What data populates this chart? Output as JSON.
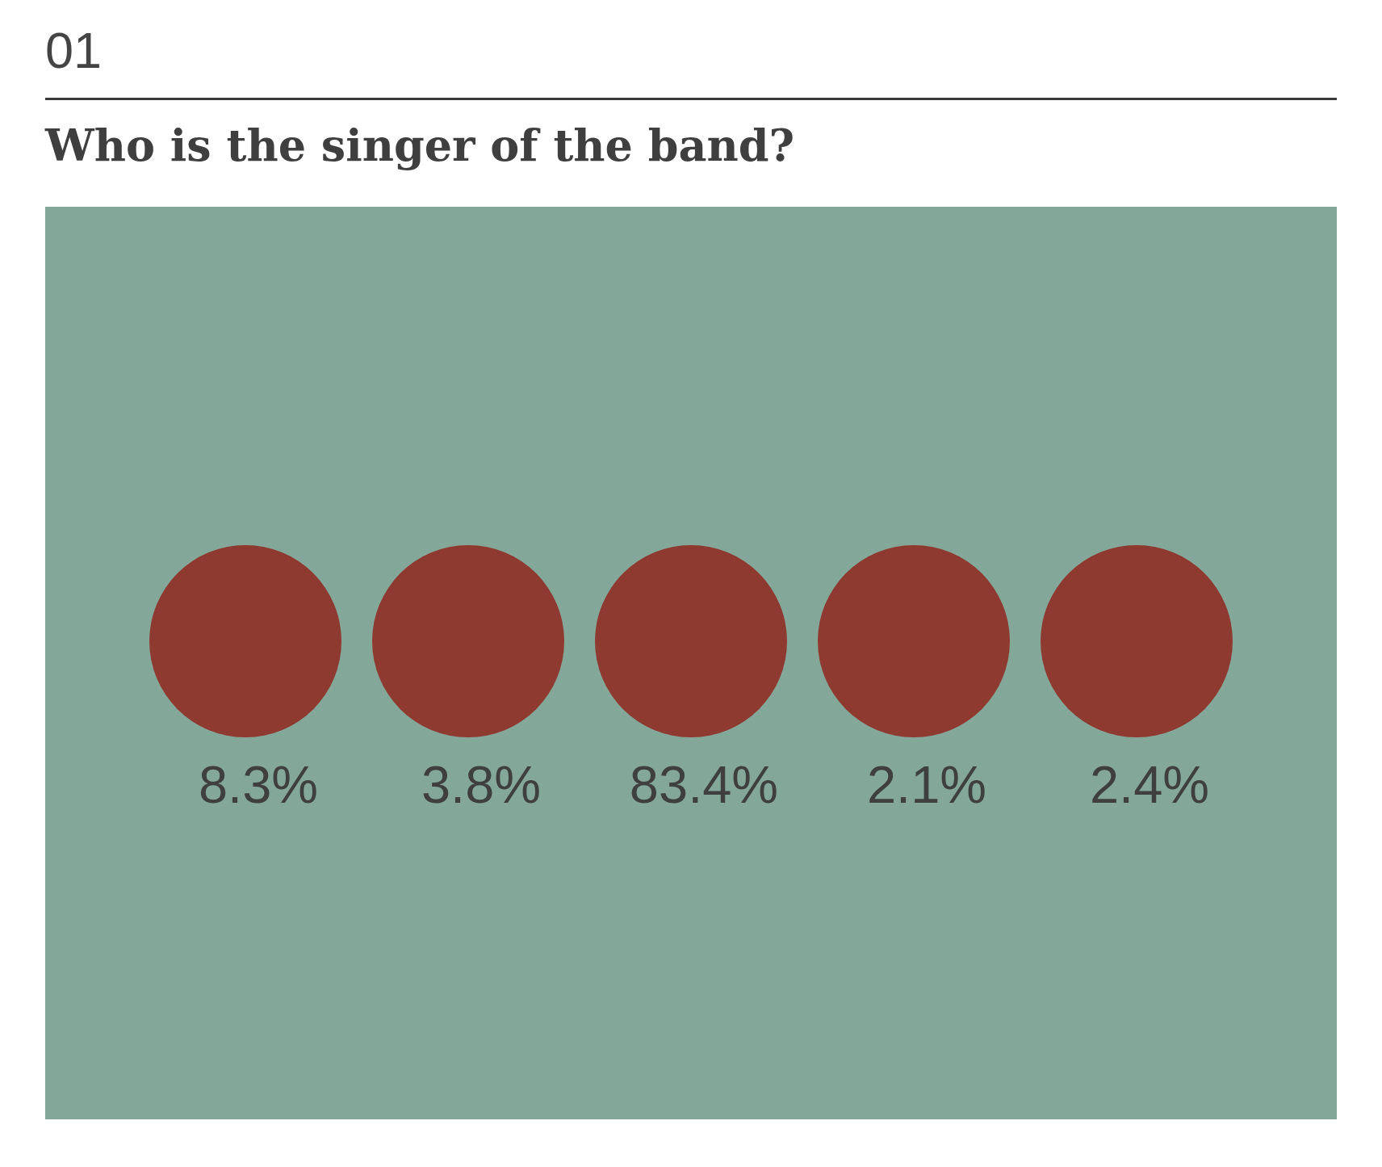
{
  "chart_data": {
    "type": "other",
    "title": "Who is the singer of the band?",
    "annotations": [
      "01"
    ],
    "categories": [
      null,
      null,
      null,
      null,
      null
    ],
    "values": [
      8.3,
      3.8,
      83.4,
      2.1,
      2.4
    ],
    "value_labels": [
      "8.3%",
      "3.8%",
      "83.4%",
      "2.1%",
      "2.4%"
    ]
  }
}
